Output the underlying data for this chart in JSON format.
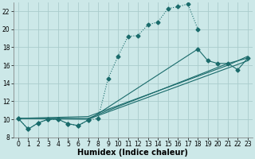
{
  "xlabel": "Humidex (Indice chaleur)",
  "bg_color": "#cce8e8",
  "grid_color": "#aacccc",
  "line_color": "#1a6b6b",
  "xlim": [
    -0.5,
    23.5
  ],
  "ylim": [
    8,
    23
  ],
  "xticks": [
    0,
    1,
    2,
    3,
    4,
    5,
    6,
    7,
    8,
    9,
    10,
    11,
    12,
    13,
    14,
    15,
    16,
    17,
    18,
    19,
    20,
    21,
    22,
    23
  ],
  "yticks": [
    8,
    10,
    12,
    14,
    16,
    18,
    20,
    22
  ],
  "curve1_x": [
    0,
    1,
    2,
    3,
    4,
    5,
    6,
    7,
    8,
    9,
    10,
    11,
    12,
    13,
    14,
    15,
    16,
    17,
    18
  ],
  "curve1_y": [
    10.1,
    8.9,
    9.6,
    10.0,
    10.0,
    9.5,
    9.3,
    9.9,
    10.1,
    14.5,
    17.0,
    19.2,
    19.3,
    20.5,
    20.8,
    22.3,
    22.5,
    22.8,
    20.0
  ],
  "curve2_x": [
    0,
    1,
    2,
    3,
    4,
    5,
    6,
    7,
    18,
    19,
    20,
    21,
    22,
    23
  ],
  "curve2_y": [
    10.1,
    8.9,
    9.6,
    10.0,
    10.0,
    9.5,
    9.3,
    9.9,
    17.8,
    16.5,
    16.2,
    16.2,
    15.5,
    16.8
  ],
  "curve3_x": [
    0,
    7,
    23
  ],
  "curve3_y": [
    10.1,
    10.0,
    16.5
  ],
  "curve4_x": [
    0,
    7,
    21,
    23
  ],
  "curve4_y": [
    10.1,
    10.1,
    16.2,
    16.8
  ],
  "curve5_x": [
    0,
    7,
    21,
    23
  ],
  "curve5_y": [
    10.1,
    10.3,
    16.0,
    17.0
  ],
  "xlabel_fontsize": 7,
  "tick_fontsize": 5.5
}
